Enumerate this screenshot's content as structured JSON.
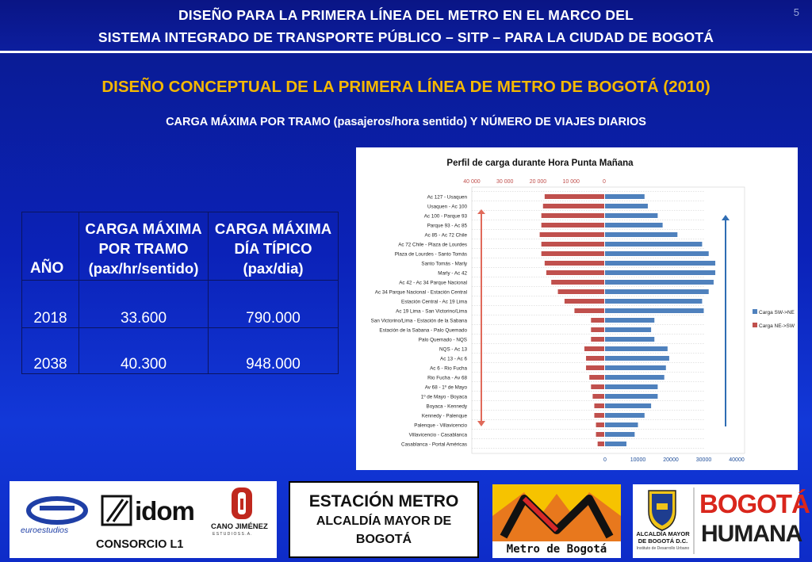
{
  "header": {
    "line1": "DISEÑO PARA LA PRIMERA LÍNEA DEL METRO EN EL MARCO DEL",
    "line2": "SISTEMA INTEGRADO DE TRANSPORTE PÚBLICO – SITP – PARA LA CIUDAD DE  BOGOTÁ",
    "page_number": "5"
  },
  "title": "DISEÑO CONCEPTUAL DE LA PRIMERA LÍNEA DE METRO DE BOGOTÁ (2010)",
  "subtitle": "CARGA MÁXIMA POR TRAMO (pasajeros/hora sentido) Y NÚMERO DE VIAJES DIARIOS",
  "table": {
    "headers": [
      "AÑO",
      "CARGA MÁXIMA POR TRAMO (pax/hr/sentido)",
      "CARGA MÁXIMA DÍA TÍPICO (pax/dia)"
    ],
    "header_lines": {
      "col2": [
        "CARGA MÁXIMA",
        "POR TRAMO",
        "(pax/hr/sentido)"
      ],
      "col3": [
        "CARGA MÁXIMA",
        "DÍA TÍPICO",
        "(pax/dia)"
      ]
    },
    "rows": [
      [
        "2018",
        "33.600",
        "790.000"
      ],
      [
        "2038",
        "40.300",
        "948.000"
      ]
    ]
  },
  "chart_data": {
    "type": "bar",
    "title": "Perfil de carga durante Hora Punta Mañana",
    "orientation": "horizontal-back-to-back",
    "categories": [
      "Ac 127 - Usaquen",
      "Usaquen - Ac 100",
      "Ac 100 - Parque 93",
      "Parque 93 - Ac 85",
      "Ac 85 - Ac 72 Chile",
      "Ac 72 Chile - Plaza de Lourdes",
      "Plaza de Lourdes - Santo Tomás",
      "Santo Tomás - Marly",
      "Marly - Ac 42",
      "Ac 42 - Ac 34 Parque Nacional",
      "Ac 34 Parque Nacional - Estación Central",
      "Estación Central - Ac 19 Lima",
      "Ac 19 Lima - San Victorino/Lima",
      "San Victorino/Lima - Estación de la Sabana",
      "Estación de la Sabana - Palo Quemado",
      "Palo Quemado - NQS",
      "NQS - Ac 13",
      "Ac 13 - Ac 6",
      "Ac 6 - Rio Fucha",
      "Rio Fucha - Av 68",
      "Av 68 - 1º de Mayo",
      "1º de Mayo - Boyaca",
      "Boyaca - Kennedy",
      "Kennedy - Palenque",
      "Palenque - Villavicencio",
      "Villavicencio - Casablanca",
      "Casablanca - Portal Américas"
    ],
    "series": [
      {
        "name": "Carga SW->NE",
        "color": "#4f81bd",
        "values": [
          12000,
          13000,
          16000,
          17500,
          22000,
          29500,
          31500,
          33500,
          33500,
          33000,
          31500,
          29500,
          30000,
          15000,
          14000,
          15000,
          19000,
          19500,
          18500,
          18000,
          16000,
          16000,
          14000,
          12000,
          10000,
          9000,
          6500
        ]
      },
      {
        "name": "Carga NE->SW",
        "color": "#c0504d",
        "values": [
          18000,
          18500,
          19000,
          19000,
          19500,
          19000,
          19000,
          18000,
          17500,
          16000,
          14000,
          12000,
          9000,
          4000,
          4000,
          4000,
          6000,
          5500,
          5500,
          4500,
          4000,
          3500,
          3000,
          3000,
          2500,
          2500,
          2000
        ]
      }
    ],
    "xlim_right": [
      0,
      40000
    ],
    "xlim_left": [
      40000,
      0
    ],
    "x_ticks_right": [
      "0",
      "10000",
      "20000",
      "30000",
      "40000"
    ],
    "x_ticks_left": [
      "40 000",
      "30 000",
      "20 000",
      "10 000",
      "0"
    ],
    "grid": true,
    "legend_position": "right"
  },
  "logos": {
    "consorcio": {
      "euro": "euroestudios",
      "idom": "idom",
      "cano": "CANO JIMÉNEZ",
      "cano_sub": "E S T U D I O S   S . A .",
      "name": "CONSORCIO L1"
    },
    "estacion": {
      "line1": "ESTACIÓN METRO",
      "line2": "ALCALDÍA MAYOR DE",
      "line3": "BOGOTÁ"
    },
    "metro": {
      "text": "Metro de Bogotá"
    },
    "alcaldia": {
      "line1": "ALCALDÍA MAYOR",
      "line2": "DE BOGOTÁ D.C.",
      "line3": "Instituto de Desarrollo Urbano",
      "bh1": "BOGOTÁ",
      "bh2": "HUMANA"
    }
  },
  "colors": {
    "title_yellow": "#f5b800",
    "series_blue": "#4f81bd",
    "series_red": "#c0504d",
    "background_blue": "#0b22b8"
  }
}
